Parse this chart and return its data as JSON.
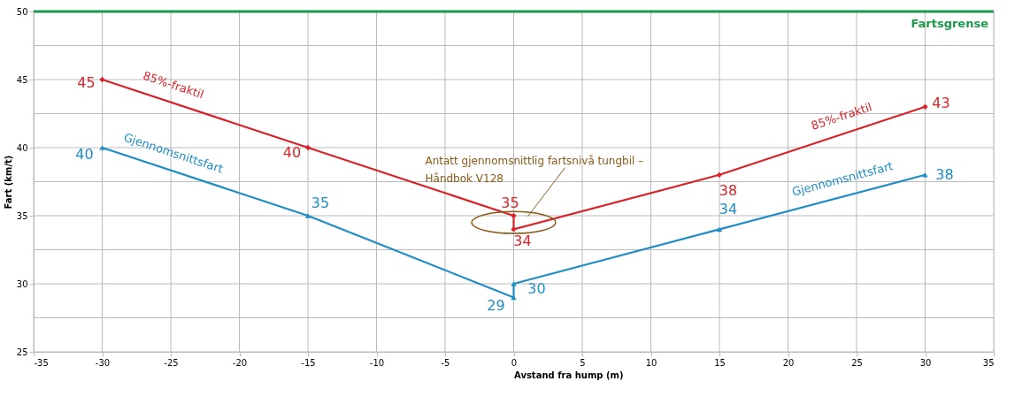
{
  "chart_data": {
    "type": "line",
    "xlabel": "Avstand fra hump (m)",
    "ylabel": "Fart (km/t)",
    "xlim": [
      -35,
      35
    ],
    "xticks": [
      -35,
      -30,
      -25,
      -20,
      -15,
      -10,
      -5,
      0,
      5,
      10,
      15,
      20,
      25,
      30,
      35
    ],
    "ylim": [
      25,
      50
    ],
    "yticks": [
      25,
      {
        "value": 27.5,
        "label": null
      },
      30,
      {
        "value": 32.5,
        "label": null
      },
      35,
      {
        "value": 37.5,
        "label": null
      },
      40,
      {
        "value": 42.5,
        "label": null
      },
      45,
      {
        "value": 47.5,
        "label": null
      },
      50
    ],
    "grid": true,
    "legend": false,
    "data_labels": true,
    "line_style": "solid",
    "x": [
      -30,
      -15,
      0,
      0,
      15,
      30
    ],
    "series": [
      {
        "name": "85%-fraktil",
        "color": "#d8232a",
        "marker": "diamond",
        "values": [
          45,
          40,
          35,
          34,
          38,
          43
        ]
      },
      {
        "name": "Gjennomsnittsfart",
        "color": "#1e8ec6",
        "marker": "triangle",
        "values": [
          40,
          35,
          29,
          30,
          34,
          38
        ]
      }
    ],
    "ref_lines": [
      {
        "axis": "y",
        "value": 50,
        "label": "Fartsgrense",
        "color": "#1a9a4a"
      }
    ],
    "annotations": [
      "Antatt gjennomsnittlig fartsnivå tungbil –\nHåndbok V128"
    ]
  }
}
